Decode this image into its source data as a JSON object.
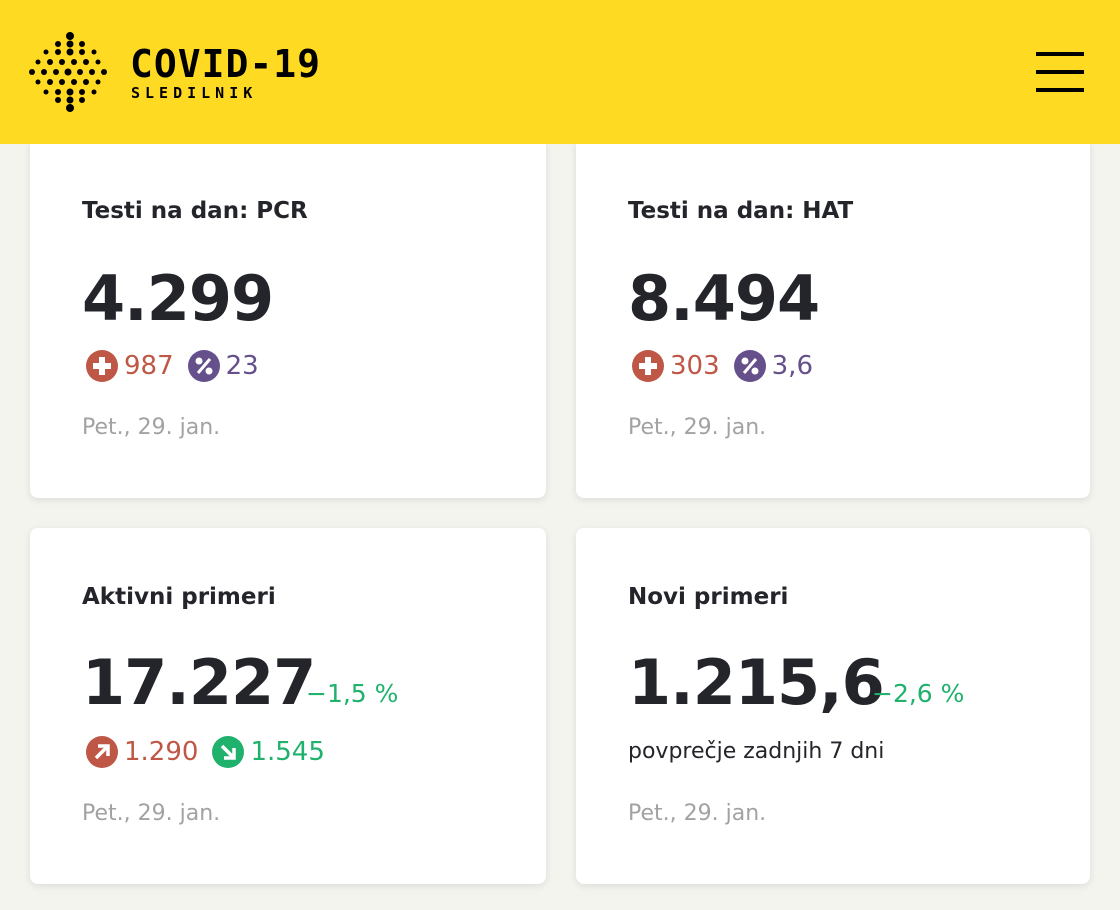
{
  "header": {
    "title": "COVID-19",
    "subtitle": "SLEDILNIK",
    "logo_icon": "dot-grid-logo-icon",
    "menu_icon": "hamburger-menu-icon",
    "background_color": "#ffda23"
  },
  "cards": [
    {
      "title": "Testi na dan: PCR",
      "value": "4.299",
      "positive": "987",
      "percent": "23",
      "date": "Pet., 29. jan."
    },
    {
      "title": "Testi na dan: HAT",
      "value": "8.494",
      "positive": "303",
      "percent": "3,6",
      "date": "Pet., 29. jan."
    },
    {
      "title": "Aktivni primeri",
      "value": "17.227",
      "change": "−1,5 %",
      "increase": "1.290",
      "decrease": "1.545",
      "date": "Pet., 29. jan."
    },
    {
      "title": "Novi primeri",
      "value": "1.215,6",
      "change": "−2,6 %",
      "note": "povprečje zadnjih 7 dni",
      "date": "Pet., 29. jan."
    }
  ],
  "colors": {
    "red": "#bf5747",
    "purple": "#65508c",
    "green": "#20b16d",
    "muted": "#a2a2a2"
  }
}
